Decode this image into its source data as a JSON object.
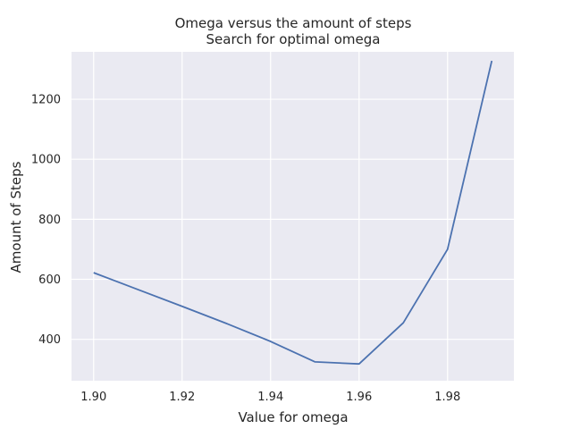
{
  "chart_data": {
    "type": "line",
    "title": "Omega versus the amount of steps",
    "subtitle": "Search for optimal omega",
    "xlabel": "Value for omega",
    "ylabel": "Amount of Steps",
    "xlim": [
      1.895,
      1.995
    ],
    "ylim": [
      262,
      1358
    ],
    "xticks": [
      1.9,
      1.92,
      1.94,
      1.96,
      1.98
    ],
    "xtick_labels": [
      "1.90",
      "1.92",
      "1.94",
      "1.96",
      "1.98"
    ],
    "yticks": [
      400,
      600,
      800,
      1000,
      1200
    ],
    "ytick_labels": [
      "400",
      "600",
      "800",
      "1000",
      "1200"
    ],
    "grid": true,
    "series": [
      {
        "x": [
          1.9,
          1.91,
          1.92,
          1.93,
          1.94,
          1.95,
          1.96,
          1.97,
          1.98,
          1.99
        ],
        "y": [
          622,
          566,
          510,
          453,
          393,
          325,
          318,
          455,
          700,
          1328
        ],
        "color": "#4c72b0"
      }
    ],
    "background": "#eaeaf2"
  }
}
